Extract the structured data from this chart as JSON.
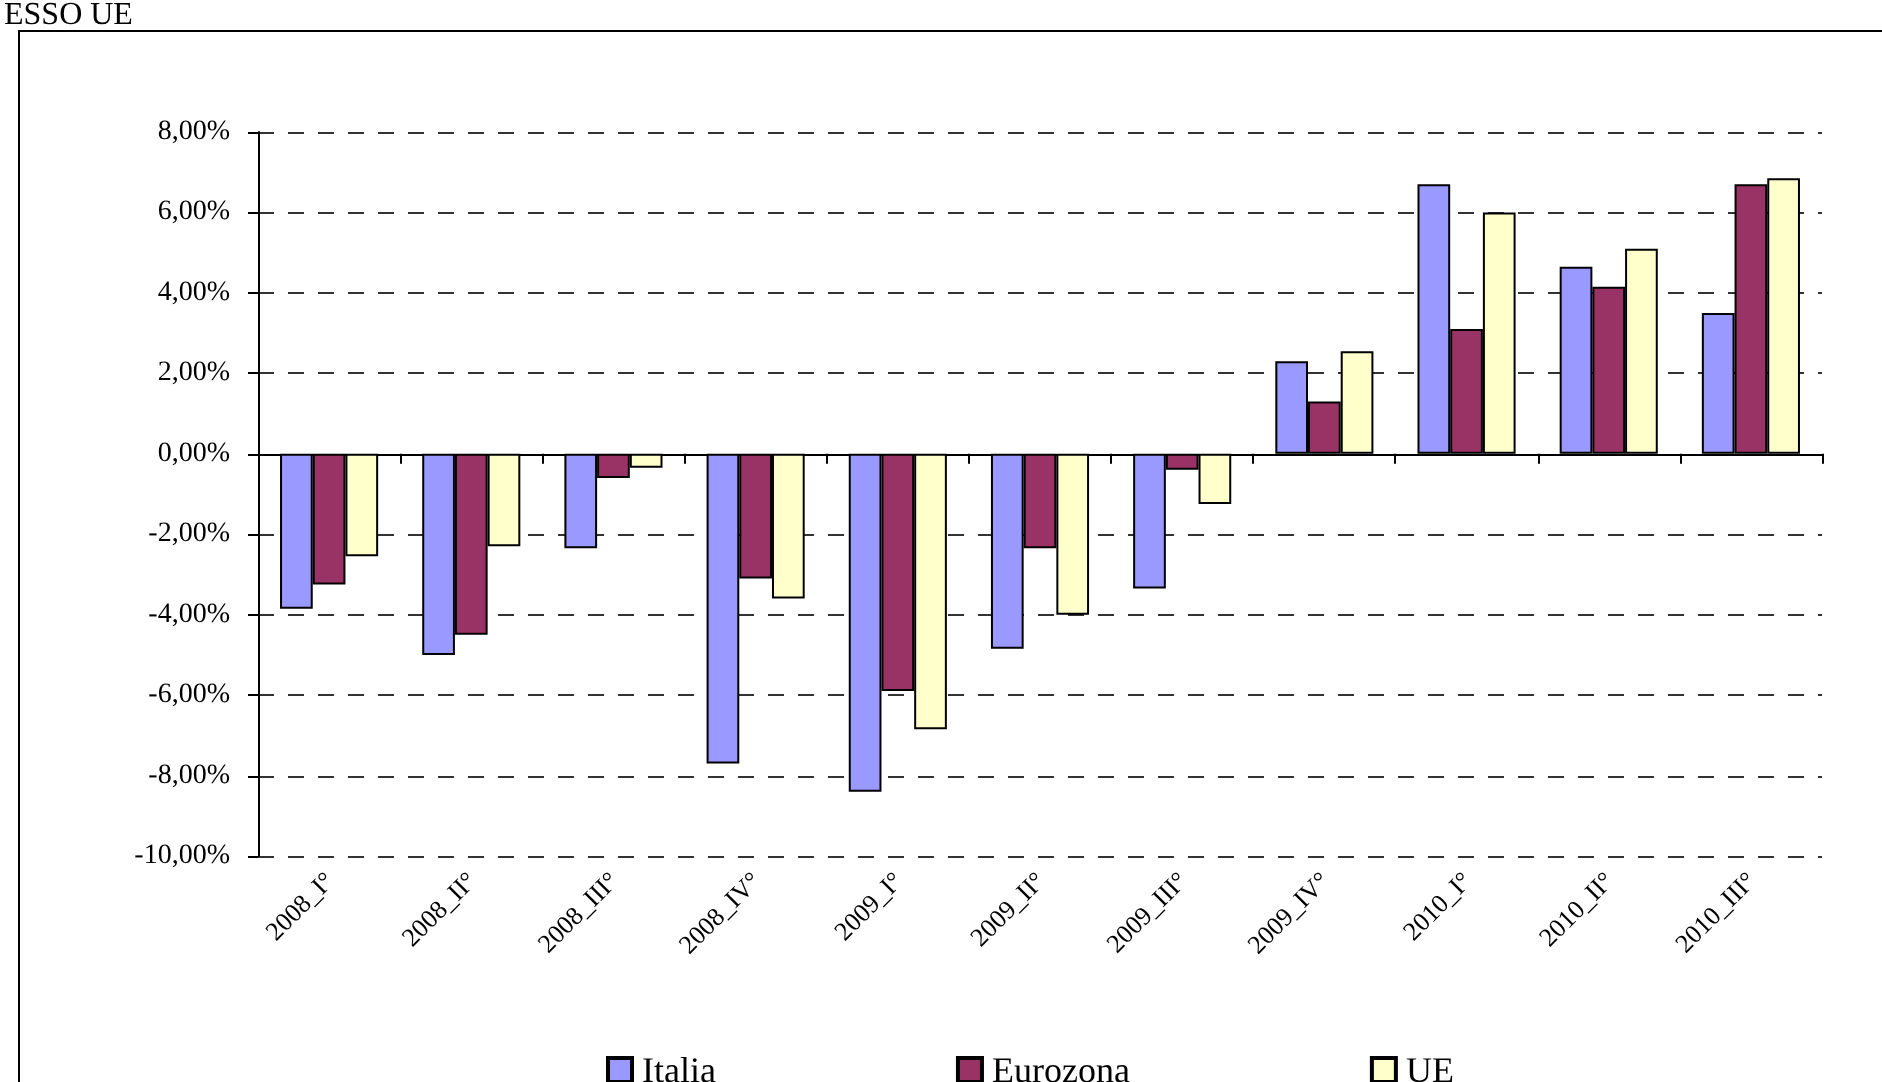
{
  "chart_data": {
    "type": "bar",
    "title": "ESSO UE",
    "categories": [
      "2008_I°",
      "2008_II°",
      "2008_III°",
      "2008_IV°",
      "2009_I°",
      "2009_II°",
      "2009_III°",
      "2009_IV°",
      "2010_I°",
      "2010_II°",
      "2010_III°"
    ],
    "series": [
      {
        "name": "Italia",
        "color": "#9999ff",
        "values": [
          -3.85,
          -5.0,
          -2.35,
          -7.7,
          -8.4,
          -4.85,
          -3.35,
          2.3,
          6.7,
          4.65,
          3.5
        ]
      },
      {
        "name": "Eurozona",
        "color": "#993366",
        "values": [
          -3.25,
          -4.5,
          -0.6,
          -3.1,
          -5.9,
          -2.35,
          -0.4,
          1.3,
          3.1,
          4.15,
          6.7
        ]
      },
      {
        "name": "UE",
        "color": "#ffffcc",
        "values": [
          -2.55,
          -2.3,
          -0.35,
          -3.6,
          -6.85,
          -4.0,
          -1.25,
          2.55,
          6.0,
          5.1,
          6.85
        ]
      }
    ],
    "ylim": [
      -10,
      8
    ],
    "yticks": [
      {
        "value": -10,
        "label": "-10,00%"
      },
      {
        "value": -8,
        "label": "-8,00%"
      },
      {
        "value": -6,
        "label": "-6,00%"
      },
      {
        "value": -4,
        "label": "-4,00%"
      },
      {
        "value": -2,
        "label": "-2,00%"
      },
      {
        "value": 0,
        "label": "0,00%"
      },
      {
        "value": 2,
        "label": "2,00%"
      },
      {
        "value": 4,
        "label": "4,00%"
      },
      {
        "value": 6,
        "label": "6,00%"
      },
      {
        "value": 8,
        "label": "8,00%"
      }
    ],
    "grid": "y",
    "legend": "bottom"
  }
}
